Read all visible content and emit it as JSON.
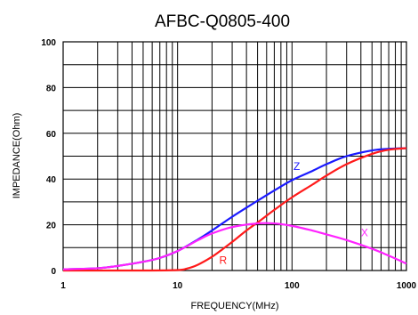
{
  "chart_data": {
    "type": "line",
    "title": "AFBC-Q0805-400",
    "xlabel": "FREQUENCY(MHz)",
    "ylabel": "IMPEDANCE(Ohm)",
    "x_scale": "log",
    "xlim": [
      1,
      1000
    ],
    "ylim": [
      0,
      100
    ],
    "x_ticks": [
      "1",
      "10",
      "100",
      "1000"
    ],
    "y_ticks": [
      "0",
      "20",
      "40",
      "60",
      "80",
      "100"
    ],
    "grid": true,
    "series": [
      {
        "name": "Z",
        "color": "#1a1aff",
        "x": [
          1,
          2,
          3,
          5,
          7,
          10,
          15,
          20,
          30,
          50,
          70,
          100,
          150,
          200,
          300,
          500,
          700,
          1000
        ],
        "y": [
          0.5,
          1.0,
          2.0,
          3.8,
          5.5,
          8.5,
          13.5,
          17.5,
          23.5,
          30.5,
          35.0,
          39.5,
          43.5,
          46.5,
          50.0,
          52.5,
          53.2,
          53.5
        ]
      },
      {
        "name": "R",
        "color": "#ff1a1a",
        "x": [
          1,
          5,
          10,
          12,
          15,
          20,
          25,
          30,
          40,
          50,
          70,
          100,
          150,
          200,
          300,
          500,
          700,
          1000
        ],
        "y": [
          0,
          0,
          0.2,
          0.8,
          2.5,
          6.0,
          9.5,
          12.5,
          17.5,
          21.0,
          26.5,
          32.0,
          37.5,
          41.5,
          46.5,
          51.0,
          52.8,
          53.5
        ]
      },
      {
        "name": "X",
        "color": "#ff22ff",
        "x": [
          1,
          2,
          3,
          5,
          7,
          10,
          15,
          20,
          30,
          50,
          70,
          100,
          150,
          200,
          300,
          500,
          700,
          1000
        ],
        "y": [
          0.5,
          1.0,
          2.0,
          3.8,
          5.5,
          8.5,
          13.2,
          16.2,
          19.0,
          20.6,
          20.6,
          19.5,
          17.5,
          15.8,
          13.3,
          9.5,
          6.5,
          3.0
        ]
      }
    ],
    "series_labels": [
      {
        "text": "Z",
        "x": 110,
        "y": 44
      },
      {
        "text": "R",
        "x": 25,
        "y": 3
      },
      {
        "text": "X",
        "x": 430,
        "y": 15
      }
    ]
  }
}
